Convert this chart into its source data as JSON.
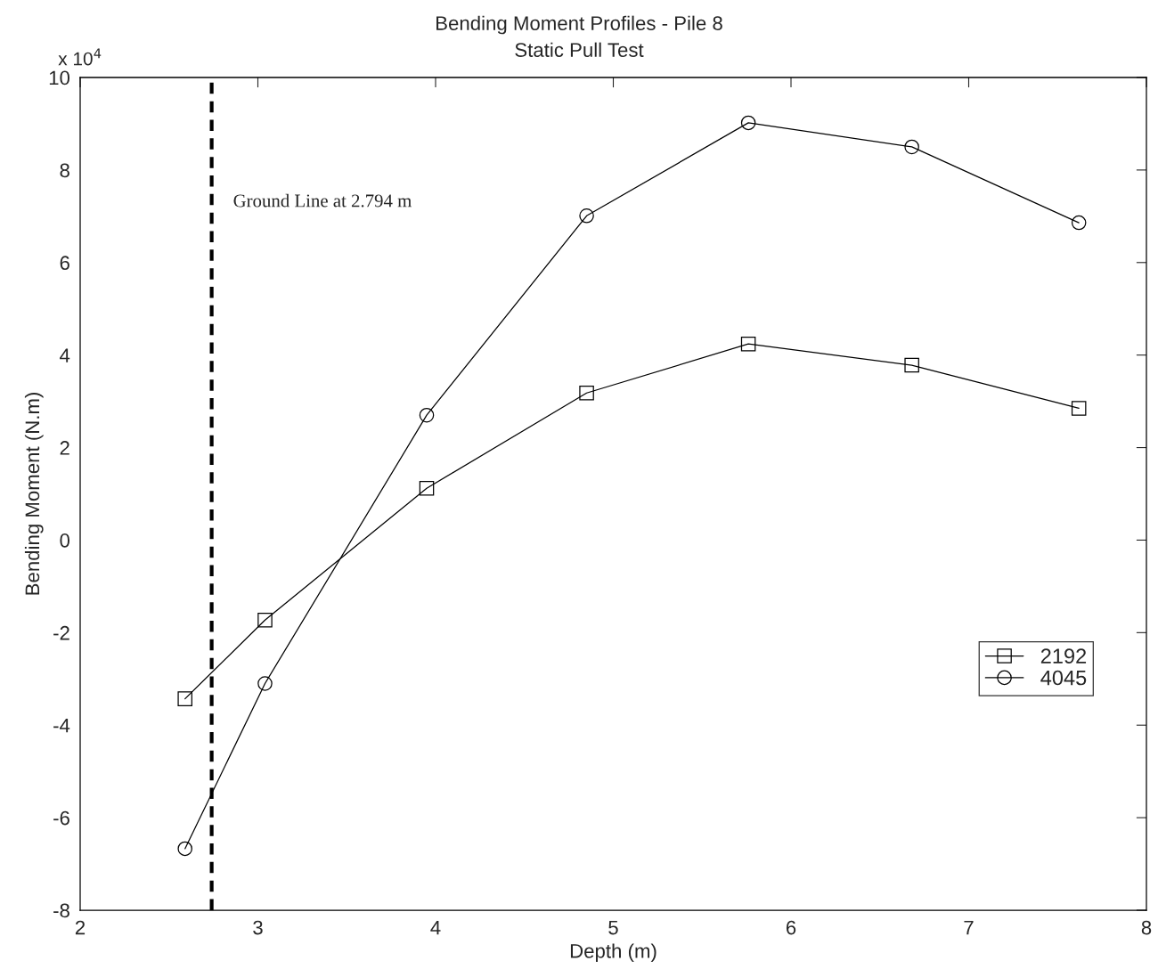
{
  "chart_data": {
    "type": "line",
    "title": "Bending Moment Profiles - Pile 8",
    "subtitle": "Static Pull Test",
    "xlabel": "Depth (m)",
    "ylabel": "Bending Moment (N.m)",
    "xlim": [
      2,
      8
    ],
    "xticks": [
      2,
      3,
      4,
      5,
      6,
      7,
      8
    ],
    "ylim": [
      -8,
      10
    ],
    "yticks": [
      -8,
      -6,
      -4,
      -2,
      0,
      2,
      4,
      6,
      8,
      10
    ],
    "x": [
      2.59,
      3.04,
      3.95,
      4.85,
      5.76,
      6.68,
      7.62
    ],
    "series": [
      {
        "name": "2192",
        "color": "#000000",
        "marker": "square",
        "values": [
          -3.43,
          -1.73,
          1.12,
          3.18,
          4.24,
          3.78,
          2.85
        ]
      },
      {
        "name": "4045",
        "color": "#000000",
        "marker": "circle",
        "values": [
          -6.67,
          -3.1,
          2.7,
          7.01,
          9.02,
          8.5,
          6.86
        ]
      }
    ],
    "ref_lines": [
      {
        "axis": "x",
        "value": 2.74,
        "label": "Ground Line at 2.794 m",
        "color": "#000000",
        "line_style": "dashed"
      }
    ],
    "annotations": [
      "x 10$^{4}$"
    ],
    "grid": false,
    "legend": "right",
    "line_style": "solid"
  }
}
